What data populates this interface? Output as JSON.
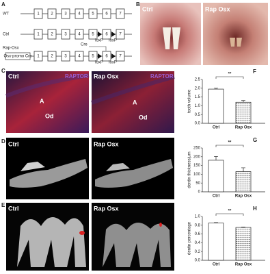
{
  "panels": {
    "a": {
      "label": "A",
      "rows": [
        {
          "name": "WT",
          "exons": [
            "1",
            "2",
            "3",
            "4",
            "5",
            "6",
            "7"
          ]
        },
        {
          "name": "Ctrl",
          "exons": [
            "1",
            "2",
            "3",
            "4",
            "5",
            "6",
            "7"
          ],
          "loxp": [
            "loxP",
            "loxP"
          ]
        },
        {
          "name": "Rap-Osx",
          "promoter": "Osx-promo Cre",
          "cre": "Cre",
          "exons": [
            "1",
            "2",
            "3",
            "4",
            "5",
            "6",
            "7"
          ],
          "loxp": [
            "loxP",
            "loxP"
          ]
        }
      ]
    },
    "b": {
      "label": "B",
      "left": "Ctrl",
      "right": "Rap Osx"
    },
    "c": {
      "label": "C",
      "left": {
        "title": "Ctrl",
        "stain": "RAPTOR",
        "a": "A",
        "od": "Od"
      },
      "right": {
        "title": "Rap Osx",
        "stain": "RAPTOR",
        "a": "A",
        "od": "Od"
      }
    },
    "d": {
      "label": "D",
      "left": "Ctrl",
      "right": "Rap Osx"
    },
    "e": {
      "label": "E",
      "left": "Ctrl",
      "right": "Rap Osx"
    }
  },
  "chart_data": [
    {
      "type": "bar",
      "label": "F",
      "ylabel": "tooth volume",
      "categories": [
        "Ctrl",
        "Rap Osx"
      ],
      "values": [
        1.95,
        1.2
      ],
      "errors": [
        0.05,
        0.1
      ],
      "hatched": [
        false,
        true
      ],
      "annotation": "**",
      "ylim": [
        0,
        2.5
      ],
      "yticks": [
        {
          "value": 0,
          "label": "0.0"
        },
        0.5,
        {
          "value": 1,
          "label": "1.0"
        },
        1.5,
        {
          "value": 2,
          "label": "2.0"
        },
        2.5
      ]
    },
    {
      "type": "bar",
      "label": "G",
      "ylabel": "dentin thickness/μm",
      "categories": [
        "Ctrl",
        "Rap Osx"
      ],
      "values": [
        180,
        115
      ],
      "errors": [
        22,
        22
      ],
      "hatched": [
        false,
        true
      ],
      "annotation": "**",
      "ylim": [
        0,
        250
      ],
      "yticks": [
        0,
        50,
        100,
        150,
        200,
        250
      ]
    },
    {
      "type": "bar",
      "label": "H",
      "ylabel": "dentin percentage",
      "categories": [
        "Ctrl",
        "Rap Osx"
      ],
      "values": [
        0.85,
        0.75
      ],
      "errors": [
        0.01,
        0.01
      ],
      "hatched": [
        false,
        true
      ],
      "annotation": "**",
      "ylim": [
        0,
        1
      ],
      "yticks": [
        {
          "value": 0,
          "label": "0.0"
        },
        0.2,
        0.4,
        0.6,
        0.8,
        {
          "value": 1,
          "label": "1.0"
        }
      ]
    }
  ]
}
